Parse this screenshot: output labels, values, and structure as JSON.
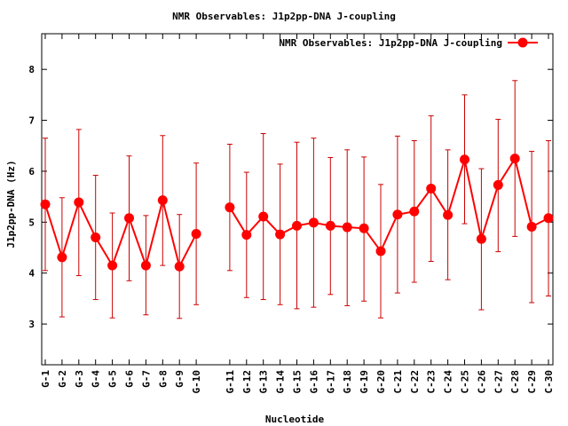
{
  "chart_data": {
    "type": "line",
    "title": "NMR Observables: J1p2pp-DNA J-coupling",
    "xlabel": "Nucleotide",
    "ylabel": "J1p2pp-DNA (Hz)",
    "ylim": [
      2.2,
      8.7
    ],
    "yticks": [
      3,
      4,
      5,
      6,
      7,
      8
    ],
    "grid": false,
    "legend_position": "top-right",
    "colors": {
      "series": "#ff0000",
      "errorbar": "#cc0000",
      "axis": "#000000"
    },
    "series": [
      {
        "name": "NMR Observables: J1p2pp-DNA J-coupling",
        "categories": [
          "G-1",
          "G-2",
          "G-3",
          "G-4",
          "G-5",
          "G-6",
          "G-7",
          "G-8",
          "G-9",
          "G-10"
        ],
        "values": [
          5.35,
          4.31,
          5.39,
          4.7,
          4.15,
          5.08,
          4.15,
          5.43,
          4.13,
          4.77
        ],
        "err_low": [
          4.05,
          3.14,
          3.95,
          3.48,
          3.12,
          3.85,
          3.18,
          4.15,
          3.11,
          3.38
        ],
        "err_high": [
          6.65,
          5.48,
          6.82,
          5.92,
          5.18,
          6.3,
          5.13,
          6.7,
          5.15,
          6.16
        ]
      },
      {
        "name": "NMR Observables: J1p2pp-DNA J-coupling",
        "categories": [
          "G-11",
          "G-12",
          "G-13",
          "G-14",
          "G-15",
          "G-16",
          "G-17",
          "G-18",
          "G-19",
          "G-20",
          "C-21",
          "C-22",
          "C-23",
          "C-24",
          "C-25",
          "C-26",
          "C-27",
          "C-28",
          "C-29",
          "C-30"
        ],
        "values": [
          5.29,
          4.75,
          5.11,
          4.76,
          4.93,
          4.99,
          4.93,
          4.9,
          4.88,
          4.43,
          5.15,
          5.21,
          5.66,
          5.14,
          6.23,
          4.67,
          5.73,
          6.25,
          4.91,
          5.08
        ],
        "err_low": [
          4.05,
          3.52,
          3.48,
          3.38,
          3.3,
          3.33,
          3.58,
          3.36,
          3.45,
          3.12,
          3.61,
          3.82,
          4.23,
          3.87,
          4.97,
          3.28,
          4.42,
          4.72,
          3.42,
          3.55
        ],
        "err_high": [
          6.53,
          5.98,
          6.74,
          6.14,
          6.57,
          6.65,
          6.27,
          6.42,
          6.28,
          5.74,
          6.69,
          6.6,
          7.09,
          6.42,
          7.5,
          6.05,
          7.02,
          7.78,
          6.39,
          6.6
        ]
      }
    ]
  }
}
